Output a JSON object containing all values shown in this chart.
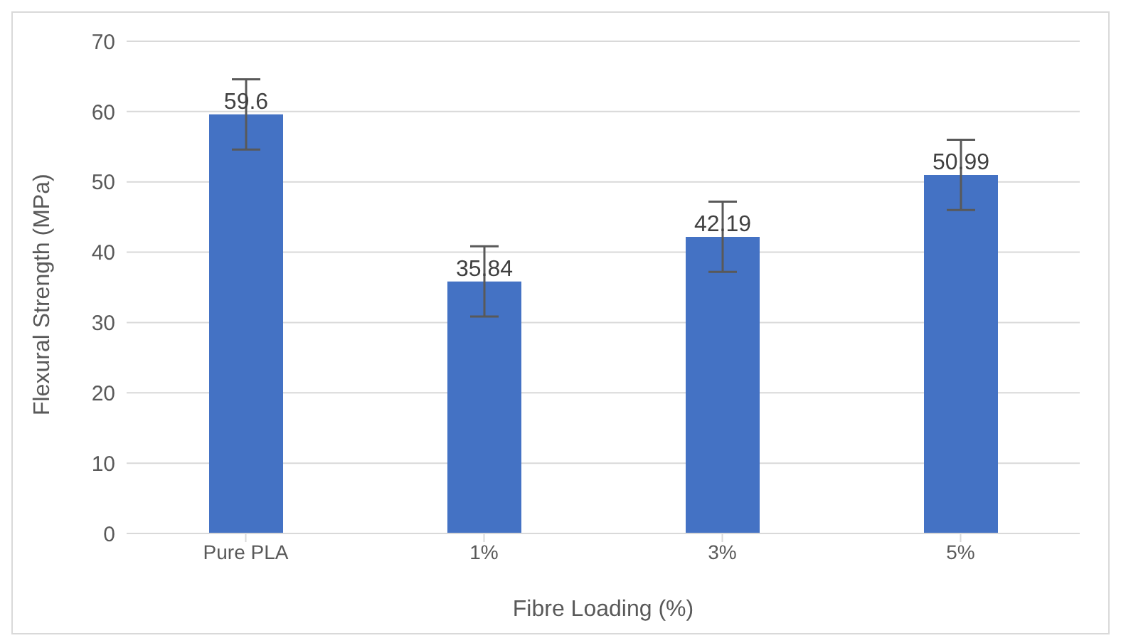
{
  "chart_data": {
    "type": "bar",
    "xlabel": "Fibre Loading (%)",
    "ylabel": "Flexural Strength (MPa)",
    "categories": [
      "Pure PLA",
      "1%",
      "3%",
      "5%"
    ],
    "values": [
      59.6,
      35.84,
      42.19,
      50.99
    ],
    "errors": [
      5,
      5,
      5,
      5
    ],
    "color": "#4472c4",
    "ylim": [
      0,
      70
    ],
    "yticks": [
      0,
      10,
      20,
      30,
      40,
      50,
      60,
      70
    ],
    "grid": "y",
    "data_labels": true
  }
}
